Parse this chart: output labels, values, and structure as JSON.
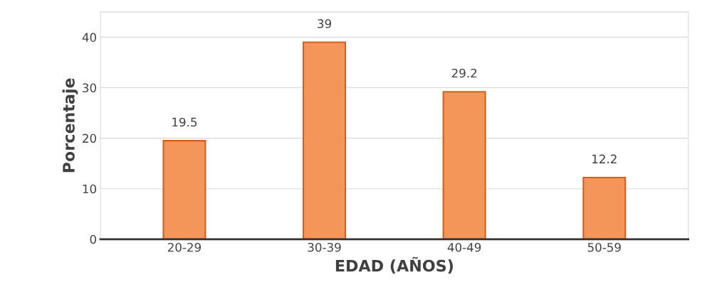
{
  "chart_data": {
    "type": "bar",
    "xlabel": "EDAD (AÑOS)",
    "ylabel": "Porcentaje",
    "categories": [
      "20-29",
      "30-39",
      "40-49",
      "50-59"
    ],
    "values": [
      19.5,
      39,
      29.2,
      12.2
    ],
    "color": "#f4955a",
    "ylim": [
      0,
      45
    ],
    "yticks": [
      0,
      10,
      20,
      30,
      40
    ],
    "grid": "y",
    "data_labels": true
  }
}
